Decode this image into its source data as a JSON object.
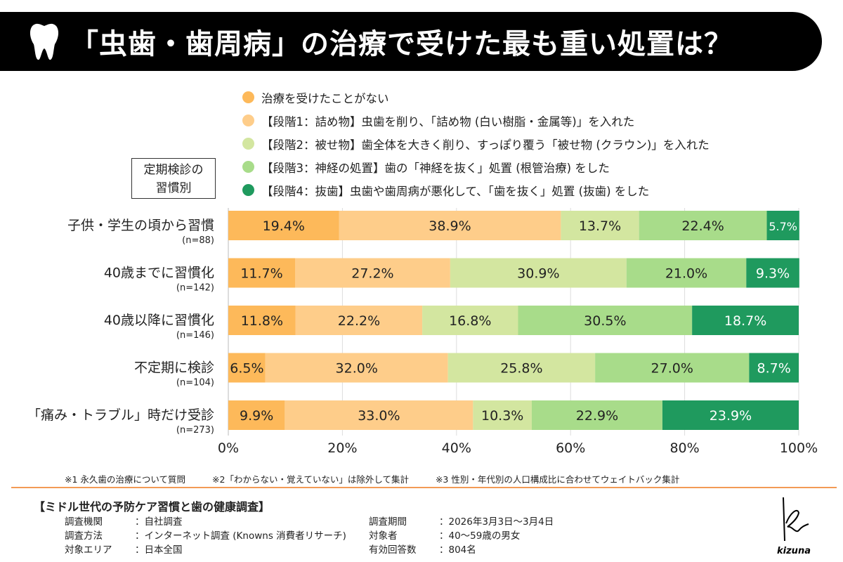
{
  "header": {
    "title": "「虫歯・歯周病」の治療で受けた最も重い処置は？",
    "icon": "tooth-icon"
  },
  "legend": [
    {
      "label": "治療を受けたことがない",
      "color": "#fdb95a"
    },
    {
      "label": "【段階1：詰め物】虫歯を削り、「詰め物 (白い樹脂・金属等)」を入れた",
      "color": "#fecd8a"
    },
    {
      "label": "【段階2：被せ物】歯全体を大きく削り、すっぽり覆う「被せ物 (クラウン)」を入れた",
      "color": "#d3e6a0"
    },
    {
      "label": "【段階3：神経の処置】歯の「神経を抜く」処置 (根管治療) をした",
      "color": "#a8dc8a"
    },
    {
      "label": "【段階4：抜歯】虫歯や歯周病が悪化して、「歯を抜く」処置 (抜歯) をした",
      "color": "#1f9a5e"
    }
  ],
  "group_label": [
    "定期検診の",
    "習慣別"
  ],
  "chart_data": {
    "type": "bar",
    "orientation": "horizontal",
    "stacked": "100%",
    "categories": [
      "子供・学生の頃から習慣",
      "40歳までに習慣化",
      "40歳以降に習慣化",
      "不定期に検診",
      "「痛み・トラブル」時だけ受診"
    ],
    "sample_sizes": [
      "(n=88)",
      "(n=142)",
      "(n=146)",
      "(n=104)",
      "(n=273)"
    ],
    "series": [
      {
        "name": "治療を受けたことがない",
        "color": "#fdb95a",
        "values": [
          19.4,
          11.7,
          11.8,
          6.5,
          9.9
        ]
      },
      {
        "name": "【段階1：詰め物】",
        "color": "#fecd8a",
        "values": [
          38.9,
          27.2,
          22.2,
          32.0,
          33.0
        ]
      },
      {
        "name": "【段階2：被せ物】",
        "color": "#d3e6a0",
        "values": [
          13.7,
          30.9,
          16.8,
          25.8,
          10.3
        ]
      },
      {
        "name": "【段階3：神経の処置】",
        "color": "#a8dc8a",
        "values": [
          22.4,
          21.0,
          30.5,
          27.0,
          22.9
        ]
      },
      {
        "name": "【段階4：抜歯】",
        "color": "#1f9a5e",
        "values": [
          5.7,
          9.3,
          18.7,
          8.7,
          23.9
        ]
      }
    ],
    "xlim": [
      0,
      100
    ],
    "xticks": [
      "0%",
      "20%",
      "40%",
      "60%",
      "80%",
      "100%"
    ],
    "grid": true
  },
  "notes": [
    "※1 永久歯の治療について質問",
    "※2「わからない・覚えていない」は除外して集計",
    "※3 性別・年代別の人口構成比に合わせてウェイトバック集計"
  ],
  "survey": {
    "title": "【ミドル世代の予防ケア習慣と歯の健康調査】",
    "left": [
      {
        "k": "調査機関",
        "v": "：自社調査"
      },
      {
        "k": "調査方法",
        "v": "：インターネット調査 (Knowns 消費者リサーチ)"
      },
      {
        "k": "対象エリア",
        "v": "：日本全国"
      }
    ],
    "right": [
      {
        "k": "調査期間",
        "v": "：2026年3月3日～3月4日"
      },
      {
        "k": "対象者",
        "v": "：40～59歳の男女"
      },
      {
        "k": "有効回答数",
        "v": "：804名"
      }
    ]
  },
  "logo": {
    "text": "kizuna"
  }
}
